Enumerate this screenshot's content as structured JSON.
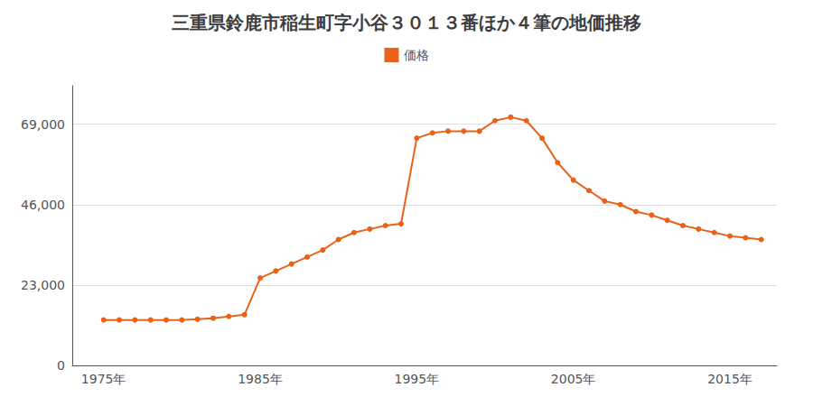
{
  "chart_data": {
    "type": "line",
    "title": "三重県鈴鹿市稲生町字小谷３０１３番ほか４筆の地価推移",
    "x": [
      1975,
      1976,
      1977,
      1978,
      1979,
      1980,
      1981,
      1982,
      1983,
      1984,
      1985,
      1986,
      1987,
      1988,
      1989,
      1990,
      1991,
      1992,
      1993,
      1994,
      1995,
      1996,
      1997,
      1998,
      1999,
      2000,
      2001,
      2002,
      2003,
      2004,
      2005,
      2006,
      2007,
      2008,
      2009,
      2010,
      2011,
      2012,
      2013,
      2014,
      2015,
      2016,
      2017
    ],
    "series": [
      {
        "name": "価格",
        "color": "#e8621a",
        "marker": "circle",
        "values": [
          13000,
          13000,
          13000,
          13000,
          13000,
          13000,
          13200,
          13500,
          14000,
          14500,
          25000,
          27000,
          29000,
          31000,
          33000,
          36000,
          38000,
          39000,
          40000,
          40500,
          65000,
          66500,
          67000,
          67000,
          67000,
          70000,
          71000,
          70000,
          65000,
          58000,
          53000,
          50000,
          47000,
          46000,
          44000,
          43000,
          41500,
          40000,
          39000,
          38000,
          37000,
          36500,
          36000
        ]
      }
    ],
    "xlim": [
      1973,
      2018
    ],
    "xticks": [
      {
        "value": 1975,
        "label": "1975年"
      },
      {
        "value": 1985,
        "label": "1985年"
      },
      {
        "value": 1995,
        "label": "1995年"
      },
      {
        "value": 2005,
        "label": "2005年"
      },
      {
        "value": 2015,
        "label": "2015年"
      }
    ],
    "ylim": [
      0,
      80000
    ],
    "yticks": [
      0,
      {
        "value": 23000,
        "label": "23,000"
      },
      {
        "value": 46000,
        "label": "46,000"
      },
      {
        "value": 69000,
        "label": "69,000"
      }
    ],
    "grid": true,
    "legend": "top"
  }
}
